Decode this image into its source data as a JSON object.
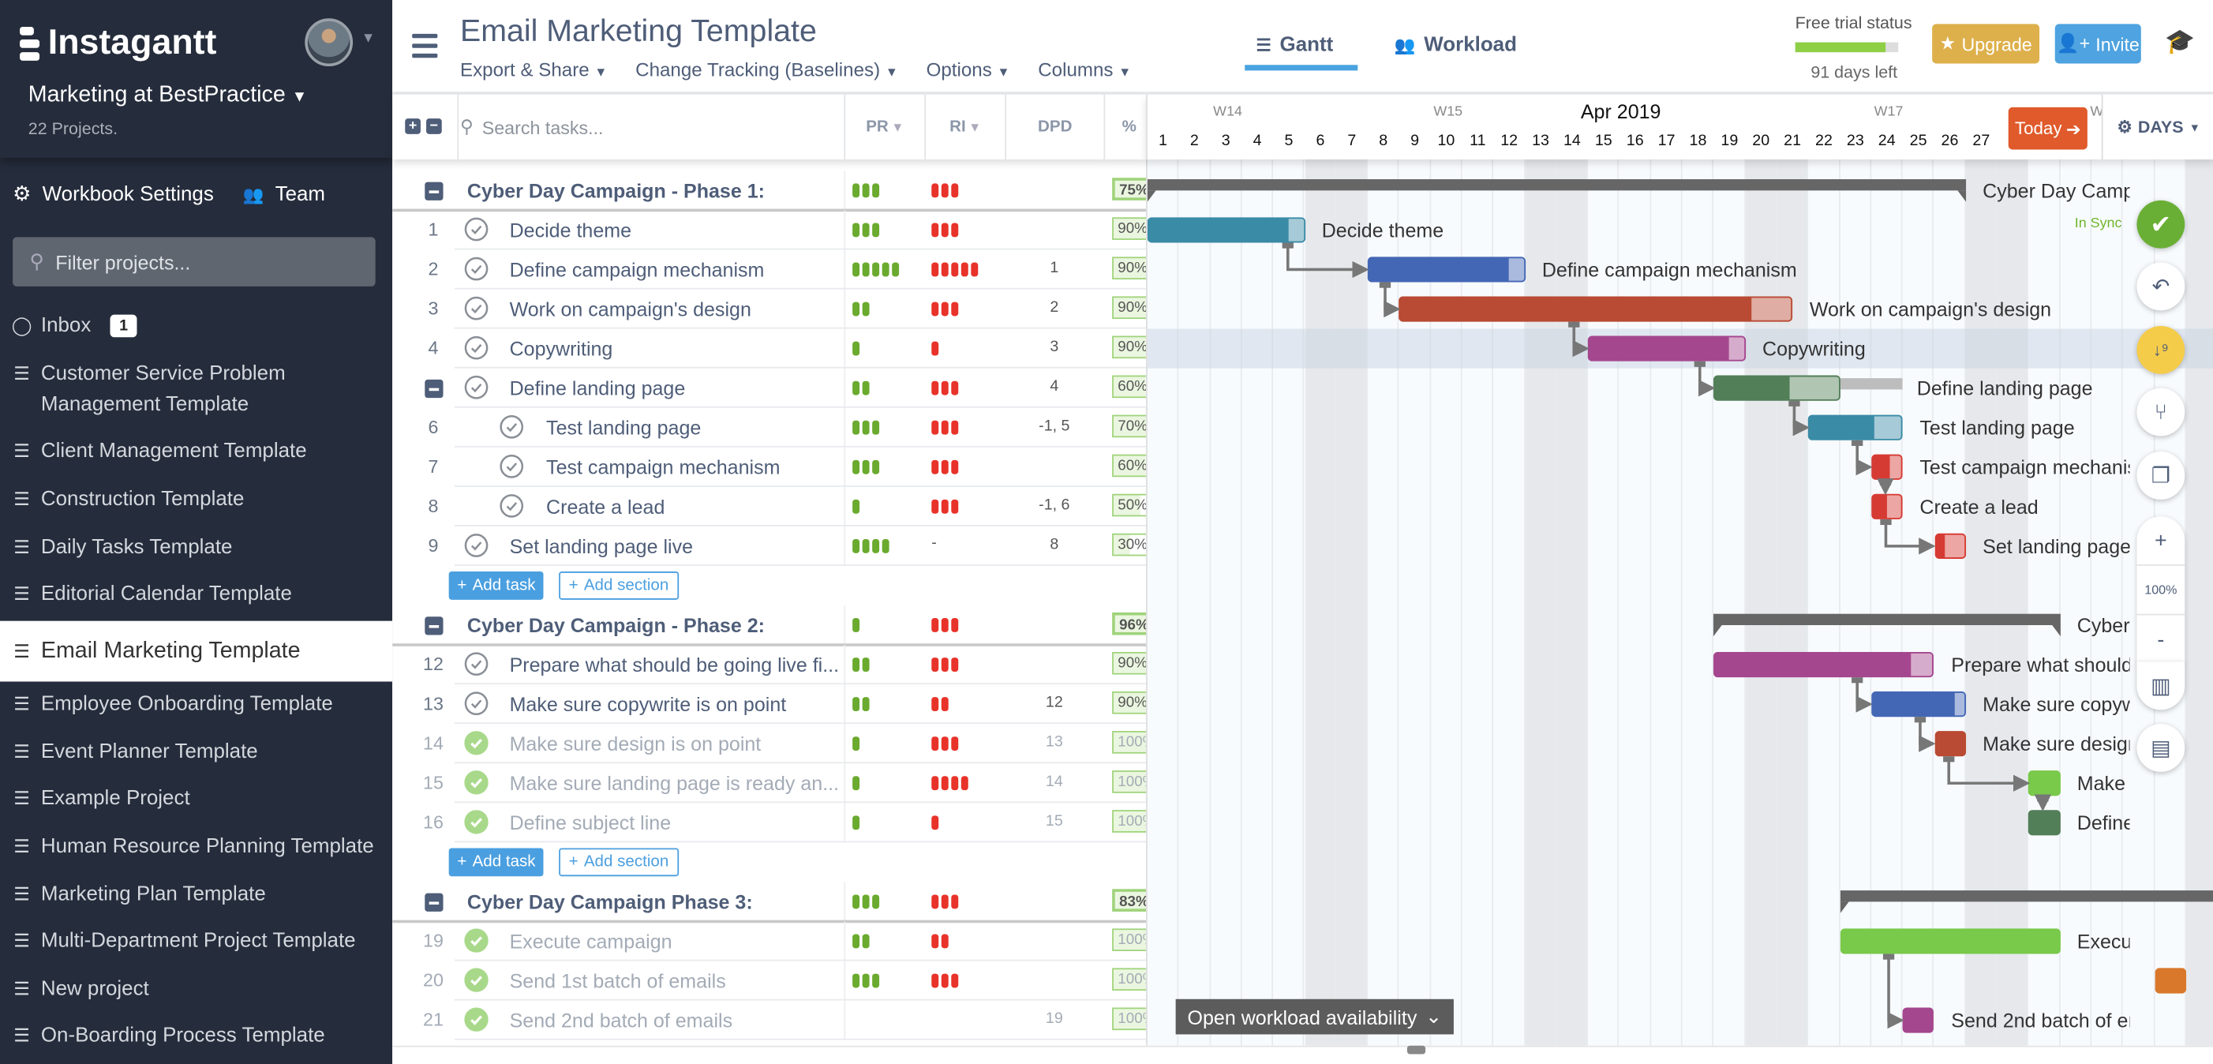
{
  "colors": {
    "sidebar_bg": "#252c3b",
    "accent": "#4aa3df",
    "upgrade": "#deb04b",
    "invite": "#4ea3e0",
    "today": "#e05a2b",
    "pr_pip": "#6aaa2e",
    "ri_pip": "#e8332a",
    "in_sync": "#6fb52c"
  },
  "sidebar": {
    "brand": "Instagantt",
    "workspace": "Marketing at BestPractice",
    "project_count": "22 Projects.",
    "workbook_settings": "Workbook Settings",
    "team": "Team",
    "filter_placeholder": "Filter projects...",
    "inbox": {
      "label": "Inbox",
      "badge": "1"
    },
    "items": [
      {
        "label": "Customer Service Problem Management Template"
      },
      {
        "label": "Client Management Template"
      },
      {
        "label": "Construction Template"
      },
      {
        "label": "Daily Tasks Template"
      },
      {
        "label": "Editorial Calendar Template"
      },
      {
        "label": "Email Marketing Template",
        "selected": true
      },
      {
        "label": "Employee Onboarding Template"
      },
      {
        "label": "Event Planner Template"
      },
      {
        "label": "Example Project"
      },
      {
        "label": "Human Resource Planning Template"
      },
      {
        "label": "Marketing Plan Template"
      },
      {
        "label": "Multi-Department Project Template"
      },
      {
        "label": "New project"
      },
      {
        "label": "On-Boarding Process Template"
      }
    ]
  },
  "header": {
    "title": "Email Marketing Template",
    "menus": [
      "Export & Share",
      "Change Tracking (Baselines)",
      "Options",
      "Columns"
    ],
    "tabs": [
      {
        "label": "Gantt",
        "active": true,
        "icon": "gantt-icon"
      },
      {
        "label": "Workload",
        "icon": "users-icon"
      }
    ],
    "trial": {
      "label": "Free trial status",
      "days_left": "91 days left",
      "progress": 0.87
    },
    "upgrade": "Upgrade",
    "invite": "Invite"
  },
  "grid": {
    "search_placeholder": "Search tasks...",
    "columns": [
      "PR",
      "RI",
      "DPD",
      "%"
    ],
    "add_task": "Add task",
    "add_section": "Add section",
    "rows": [
      {
        "type": "group",
        "name": "Cyber Day Campaign - Phase 1:",
        "pr": 3,
        "ri": 3,
        "pct": "75%",
        "bar": {
          "start": 1,
          "end": 26
        }
      },
      {
        "type": "task",
        "num": "1",
        "name": "Decide theme",
        "pr": 3,
        "ri": 3,
        "dpd": "",
        "pct": "90%",
        "bar": {
          "start": 1,
          "end": 5,
          "color": "#3a8ba6"
        }
      },
      {
        "type": "task",
        "num": "2",
        "name": "Define campaign mechanism",
        "pr": 5,
        "ri": 5,
        "dpd": "1",
        "pct": "90%",
        "bar": {
          "start": 8,
          "end": 12,
          "color": "#4467b5"
        }
      },
      {
        "type": "task",
        "num": "3",
        "name": "Work on campaign's design",
        "pr": 2,
        "ri": 3,
        "dpd": "2",
        "pct": "90%",
        "bar": {
          "start": 9,
          "end": 20.5,
          "color": "#b94a33"
        }
      },
      {
        "type": "task",
        "num": "4",
        "name": "Copywriting",
        "pr": 1,
        "ri": 1,
        "dpd": "3",
        "pct": "90%",
        "highlight": true,
        "bar": {
          "start": 15,
          "end": 19,
          "color": "#a5478f"
        }
      },
      {
        "type": "task",
        "collapsible": true,
        "name": "Define landing page",
        "pr": 2,
        "ri": 3,
        "dpd": "4",
        "pct": "60%",
        "bar": {
          "start": 19,
          "end": 22,
          "color": "#527e58",
          "baseline_end": 24
        }
      },
      {
        "type": "task",
        "num": "6",
        "indent": true,
        "name": "Test landing page",
        "pr": 3,
        "ri": 3,
        "dpd": "-1, 5",
        "pct": "70%",
        "bar": {
          "start": 22,
          "end": 24,
          "color": "#3a8ba6"
        }
      },
      {
        "type": "task",
        "num": "7",
        "indent": true,
        "name": "Test campaign mechanism",
        "pr": 3,
        "ri": 3,
        "dpd": "",
        "pct": "60%",
        "bar": {
          "start": 24,
          "end": 24,
          "color": "#d63b33"
        }
      },
      {
        "type": "task",
        "num": "8",
        "indent": true,
        "name": "Create a lead",
        "pr": 1,
        "ri": 3,
        "dpd": "-1, 6",
        "pct": "50%",
        "bar": {
          "start": 24,
          "end": 24,
          "color": "#d63b33"
        }
      },
      {
        "type": "task",
        "num": "9",
        "name": "Set landing page live",
        "pr": 4,
        "ri": "-",
        "dpd": "8",
        "pct": "30%",
        "bar": {
          "start": 26,
          "end": 26,
          "color": "#d63b33"
        }
      },
      {
        "type": "add"
      },
      {
        "type": "group",
        "name": "Cyber Day Campaign - Phase 2:",
        "pr": 1,
        "ri": 3,
        "pct": "96%",
        "bar": {
          "start": 19,
          "end": 29
        }
      },
      {
        "type": "task",
        "num": "12",
        "name": "Prepare what should be going live fi...",
        "pr": 2,
        "ri": 3,
        "dpd": "",
        "pct": "90%",
        "bar": {
          "start": 19,
          "end": 25,
          "color": "#a5478f"
        }
      },
      {
        "type": "task",
        "num": "13",
        "name": "Make sure copywrite is on point",
        "pr": 2,
        "ri": 2,
        "dpd": "12",
        "pct": "90%",
        "bar": {
          "start": 24,
          "end": 26,
          "color": "#4467b5"
        }
      },
      {
        "type": "task",
        "num": "14",
        "done": true,
        "name": "Make sure design is on point",
        "pr": 1,
        "ri": 3,
        "dpd": "13",
        "pct": "100%",
        "bar": {
          "start": 26,
          "end": 26,
          "color": "#b94a33"
        }
      },
      {
        "type": "task",
        "num": "15",
        "done": true,
        "name": "Make sure landing page is ready an...",
        "pr": 1,
        "ri": 4,
        "dpd": "14",
        "pct": "100%",
        "bar": {
          "start": 29,
          "end": 29,
          "color": "#79c94a"
        }
      },
      {
        "type": "task",
        "num": "16",
        "done": true,
        "name": "Define subject line",
        "pr": 1,
        "ri": 1,
        "dpd": "15",
        "pct": "100%",
        "bar": {
          "start": 29,
          "end": 29,
          "color": "#527e58"
        }
      },
      {
        "type": "add"
      },
      {
        "type": "group",
        "name": "Cyber Day Campaign Phase 3:",
        "pr": 3,
        "ri": 3,
        "pct": "83%",
        "bar": {
          "start": 23,
          "end": 35
        }
      },
      {
        "type": "task",
        "num": "19",
        "done": true,
        "name": "Execute campaign",
        "pr": 2,
        "ri": 2,
        "dpd": "",
        "pct": "100%",
        "bar": {
          "start": 23,
          "end": 29,
          "color": "#79c94a"
        }
      },
      {
        "type": "task",
        "num": "20",
        "done": true,
        "name": "Send 1st batch of emails",
        "pr": 3,
        "ri": 3,
        "dpd": "",
        "pct": "100%",
        "bar": {
          "start": 33,
          "end": 33,
          "color": "#d9782b"
        },
        "hide_label": true
      },
      {
        "type": "task",
        "num": "21",
        "done": true,
        "name": "Send 2nd batch of emails",
        "pr": 0,
        "ri": 0,
        "dpd": "19",
        "pct": "100%",
        "bar": {
          "start": 25,
          "end": 25,
          "color": "#a5478f"
        }
      }
    ]
  },
  "gantt": {
    "month": "Apr 2019",
    "weeks": [
      {
        "label": "W14",
        "day": 3
      },
      {
        "label": "W15",
        "day": 10
      },
      {
        "label": "W17",
        "day": 24
      },
      {
        "label": "W",
        "day": 31
      }
    ],
    "weekend_days": [
      6,
      7,
      13,
      14,
      20,
      21,
      27,
      28,
      34
    ],
    "today": "Today",
    "scale": "DAYS",
    "in_sync": "In Sync",
    "workload_button": "Open workload availability",
    "zoom_level": "100%",
    "dependencies": [
      [
        "Decide theme",
        "Define campaign mechanism"
      ],
      [
        "Define campaign mechanism",
        "Work on campaign's design"
      ],
      [
        "Work on campaign's design",
        "Copywriting"
      ],
      [
        "Copywriting",
        "Define landing page"
      ],
      [
        "Define landing page",
        "Test landing page"
      ],
      [
        "Test landing page",
        "Test campaign mechanism"
      ],
      [
        "Test campaign mechanism",
        "Create a lead"
      ],
      [
        "Create a lead",
        "Set landing page live"
      ],
      [
        "Prepare what should be going live fi...",
        "Make sure copywrite is on point"
      ],
      [
        "Make sure copywrite is on point",
        "Make sure design is on point"
      ],
      [
        "Make sure design is on point",
        "Make sure landing page is ready an..."
      ],
      [
        "Make sure landing page is ready an...",
        "Define subject line"
      ],
      [
        "Execute campaign",
        "Send 2nd batch of emails"
      ]
    ]
  }
}
